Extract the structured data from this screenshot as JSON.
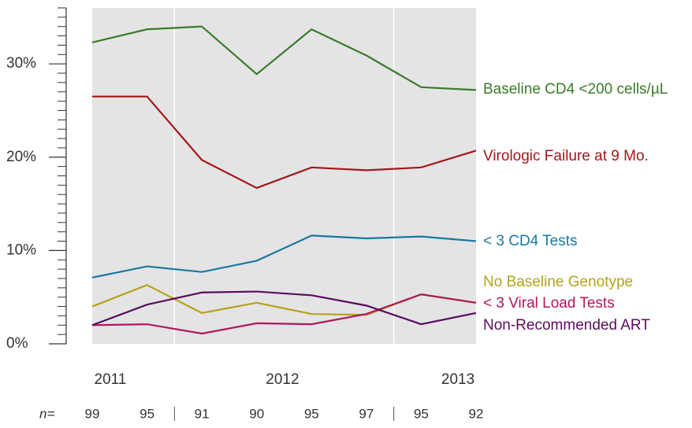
{
  "chart_data": {
    "type": "line",
    "categories": [
      null,
      null,
      null,
      null,
      null,
      null,
      null,
      null
    ],
    "xlim": [
      0,
      7
    ],
    "xticks": [
      {
        "value": 0.33,
        "label": "2011"
      },
      {
        "value": 3.47,
        "label": "2012"
      },
      {
        "value": 6.67,
        "label": "2013"
      }
    ],
    "year_dividers": [
      1.5,
      5.5
    ],
    "n_label": "n=",
    "n_counts": [
      99,
      95,
      91,
      90,
      95,
      97,
      95,
      92
    ],
    "ylim": [
      0,
      36
    ],
    "yticks": [
      {
        "value": 0,
        "label": "0%"
      },
      {
        "value": 10,
        "label": "10%"
      },
      {
        "value": 20,
        "label": "20%"
      },
      {
        "value": 30,
        "label": "30%"
      }
    ],
    "yticks_minor": [
      1,
      2,
      3,
      4,
      5,
      6,
      7,
      8,
      9,
      11,
      12,
      13,
      14,
      15,
      16,
      17,
      18,
      19,
      21,
      22,
      23,
      24,
      25,
      26,
      27,
      28,
      29,
      31,
      32,
      33,
      34,
      35,
      36
    ],
    "series": [
      {
        "name": "Baseline CD4 <200 cells/µL",
        "color": "#3b7a2b",
        "values": [
          32.3,
          33.7,
          34.0,
          28.9,
          33.7,
          30.9,
          27.5,
          27.2
        ]
      },
      {
        "name": "Virologic Failure at 9 Mo.",
        "color": "#a3161a",
        "values": [
          26.5,
          26.5,
          19.7,
          16.7,
          18.9,
          18.6,
          18.9,
          20.7
        ]
      },
      {
        "name": "< 3 CD4 Tests",
        "color": "#1a78a0",
        "values": [
          7.1,
          8.3,
          7.7,
          8.9,
          11.6,
          11.3,
          11.5,
          11.0
        ]
      },
      {
        "name": "No Baseline Genotype",
        "color": "#b4a21c",
        "values": [
          4.0,
          6.3,
          3.3,
          4.4,
          3.2,
          3.1,
          5.3,
          4.4
        ]
      },
      {
        "name": "< 3 Viral Load Tests",
        "color": "#b0185a",
        "values": [
          2.0,
          2.1,
          1.1,
          2.2,
          2.1,
          3.2,
          5.3,
          4.4
        ]
      },
      {
        "name": "Non-Recommended ART",
        "color": "#5a0c5c",
        "values": [
          2.0,
          4.2,
          5.5,
          5.6,
          5.2,
          4.1,
          2.1,
          3.3
        ]
      }
    ]
  }
}
